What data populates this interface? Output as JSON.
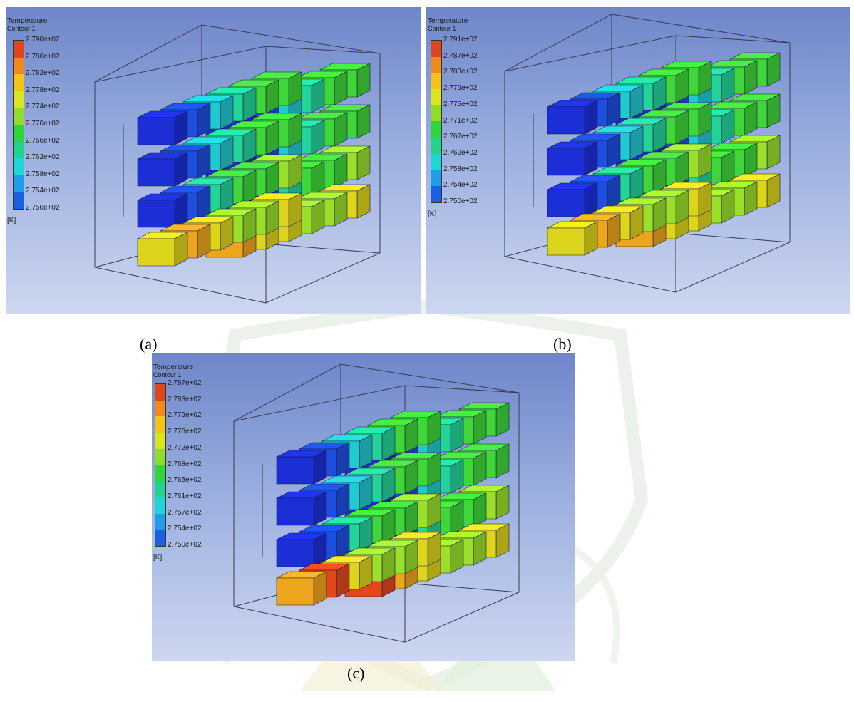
{
  "figures": [
    {
      "id": "a",
      "caption": "(a)",
      "legend": {
        "title": "Temperature",
        "subtitle": "Contour 1",
        "unit": "[K]",
        "levels": [
          "2.790e+02",
          "2.786e+02",
          "2.782e+02",
          "2.778e+02",
          "2.774e+02",
          "2.770e+02",
          "2.766e+02",
          "2.762e+02",
          "2.758e+02",
          "2.754e+02",
          "2.750e+02"
        ]
      },
      "heat": [
        "yellow",
        "yellow",
        "orange",
        "yellow"
      ]
    },
    {
      "id": "b",
      "caption": "(b)",
      "legend": {
        "title": "Temperature",
        "subtitle": "Contour 1",
        "unit": "[K]",
        "levels": [
          "2.791e+02",
          "2.787e+02",
          "2.783e+02",
          "2.779e+02",
          "2.775e+02",
          "2.771e+02",
          "2.767e+02",
          "2.762e+02",
          "2.758e+02",
          "2.754e+02",
          "2.750e+02"
        ]
      },
      "heat": [
        "yellow",
        "yellow",
        "orange",
        "yellow"
      ]
    },
    {
      "id": "c",
      "caption": "(c)",
      "legend": {
        "title": "Temperature",
        "subtitle": "Contour 1",
        "unit": "[K]",
        "levels": [
          "2.787e+02",
          "2.783e+02",
          "2.779e+02",
          "2.776e+02",
          "2.772e+02",
          "2.768e+02",
          "2.765e+02",
          "2.761e+02",
          "2.757e+02",
          "2.754e+02",
          "2.750e+02"
        ]
      },
      "heat": [
        "orange",
        "orange",
        "red",
        "orange"
      ]
    }
  ],
  "colormap": [
    "#e0461b",
    "#f08a1c",
    "#f2c41a",
    "#d9e61e",
    "#8fdc2c",
    "#2ed63a",
    "#22d48a",
    "#1fd6d6",
    "#1e9ee8",
    "#1b5fe3",
    "#1a2bd6"
  ]
}
